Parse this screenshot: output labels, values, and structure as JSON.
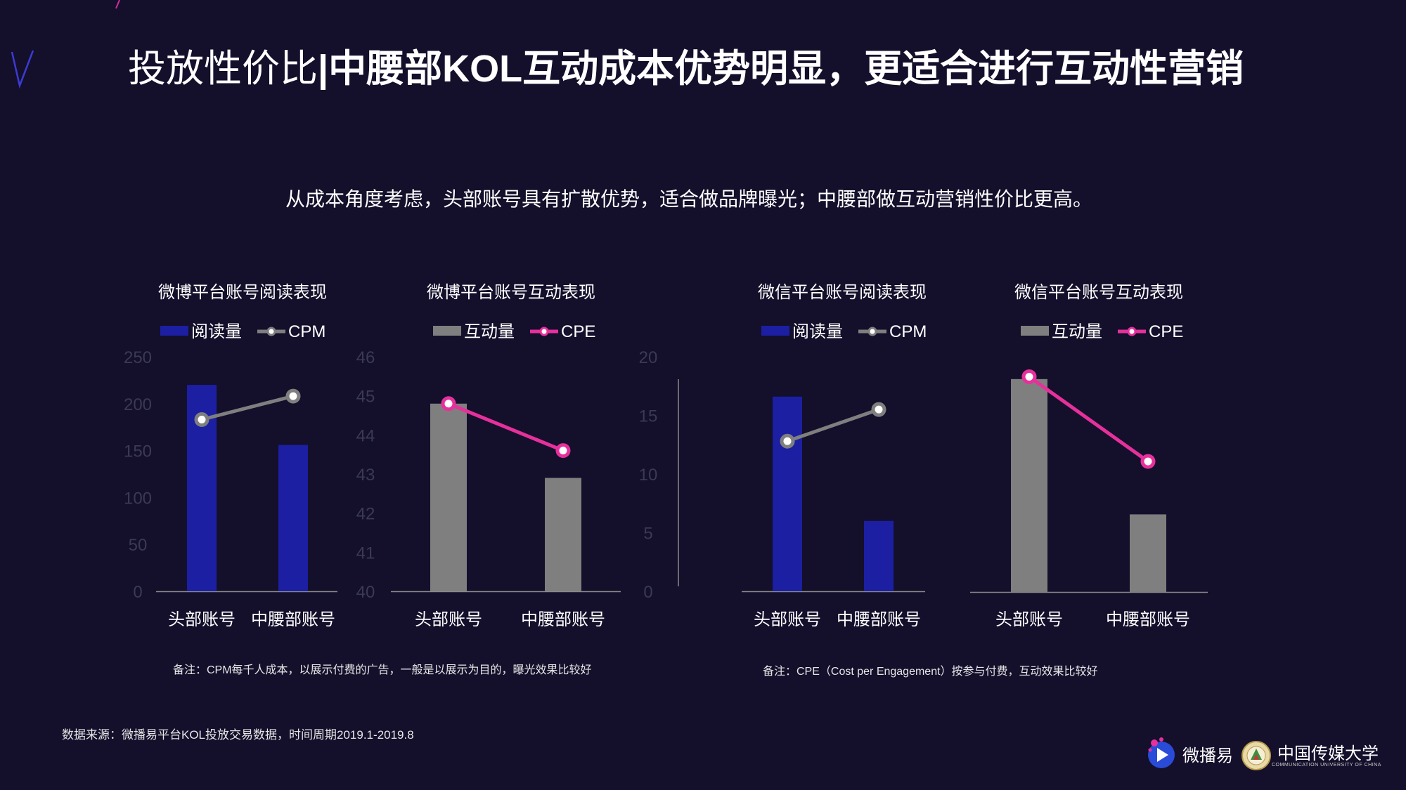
{
  "slide": {
    "title_prefix": "投放性价比",
    "title_separator": "|",
    "title_main": "中腰部KOL互动成本优势明显，更适合进行互动性营销",
    "subtitle": "从成本角度考虑，头部账号具有扩散优势，适合做品牌曝光；中腰部做互动营销性价比更高。",
    "note_left": "备注：CPM每千人成本，以展示付费的广告，一般是以展示为目的，曝光效果比较好",
    "note_right": "备注：CPE（Cost per Engagement）按参与付费，互动效果比较好",
    "source": "数据来源：微播易平台KOL投放交易数据，时间周期2019.1-2019.8",
    "logo_weiboyi": "微播易",
    "logo_cuc": "中国传媒大学",
    "logo_cuc_sub": "COMMUNICATION UNIVERSITY OF CHINA"
  },
  "colors": {
    "background": "#140f2b",
    "bar_read": "#1c1fa2",
    "bar_interact": "#7f7f7f",
    "line_cpm": "#7f7f7f",
    "line_cpe": "#e6309c",
    "axis_text": "#3a3a55",
    "category_text": "#ffffff"
  },
  "chart_data": [
    {
      "type": "bar",
      "title": "微博平台账号阅读表现",
      "categories": [
        "头部账号",
        "中腰部账号"
      ],
      "series": [
        {
          "name": "阅读量",
          "values": [
            220,
            156
          ]
        },
        {
          "name": "CPM",
          "values": [
            183,
            208
          ],
          "kind": "line"
        }
      ],
      "y_ticks": [
        "250",
        "200",
        "150",
        "100",
        "50",
        "0"
      ],
      "ylim": [
        0,
        250
      ]
    },
    {
      "type": "bar",
      "title": "微博平台账号互动表现",
      "categories": [
        "头部账号",
        "中腰部账号"
      ],
      "series": [
        {
          "name": "互动量",
          "values": [
            44.8,
            42.9
          ]
        },
        {
          "name": "CPE",
          "values": [
            44.8,
            43.6
          ],
          "kind": "line"
        }
      ],
      "y_ticks": [
        "46",
        "45",
        "44",
        "43",
        "42",
        "41",
        "40"
      ],
      "ylim": [
        40,
        46
      ]
    },
    {
      "type": "bar",
      "title": "微信平台账号阅读表现",
      "categories": [
        "头部账号",
        "中腰部账号"
      ],
      "series": [
        {
          "name": "阅读量",
          "values": [
            16.6,
            6.0
          ]
        },
        {
          "name": "CPM",
          "values": [
            12.8,
            15.5
          ],
          "kind": "line"
        }
      ],
      "y_ticks": [
        "20",
        "15",
        "10",
        "5",
        "0"
      ],
      "ylim": [
        0,
        20
      ]
    },
    {
      "type": "bar",
      "title": "微信平台账号互动表现",
      "categories": [
        "头部账号",
        "中腰部账号"
      ],
      "series": [
        {
          "name": "互动量",
          "values": [
            18.1,
            6.6
          ]
        },
        {
          "name": "CPE",
          "values": [
            18.3,
            11.1
          ],
          "kind": "line"
        }
      ],
      "y_ticks": [],
      "ylim": [
        0,
        20
      ]
    }
  ]
}
